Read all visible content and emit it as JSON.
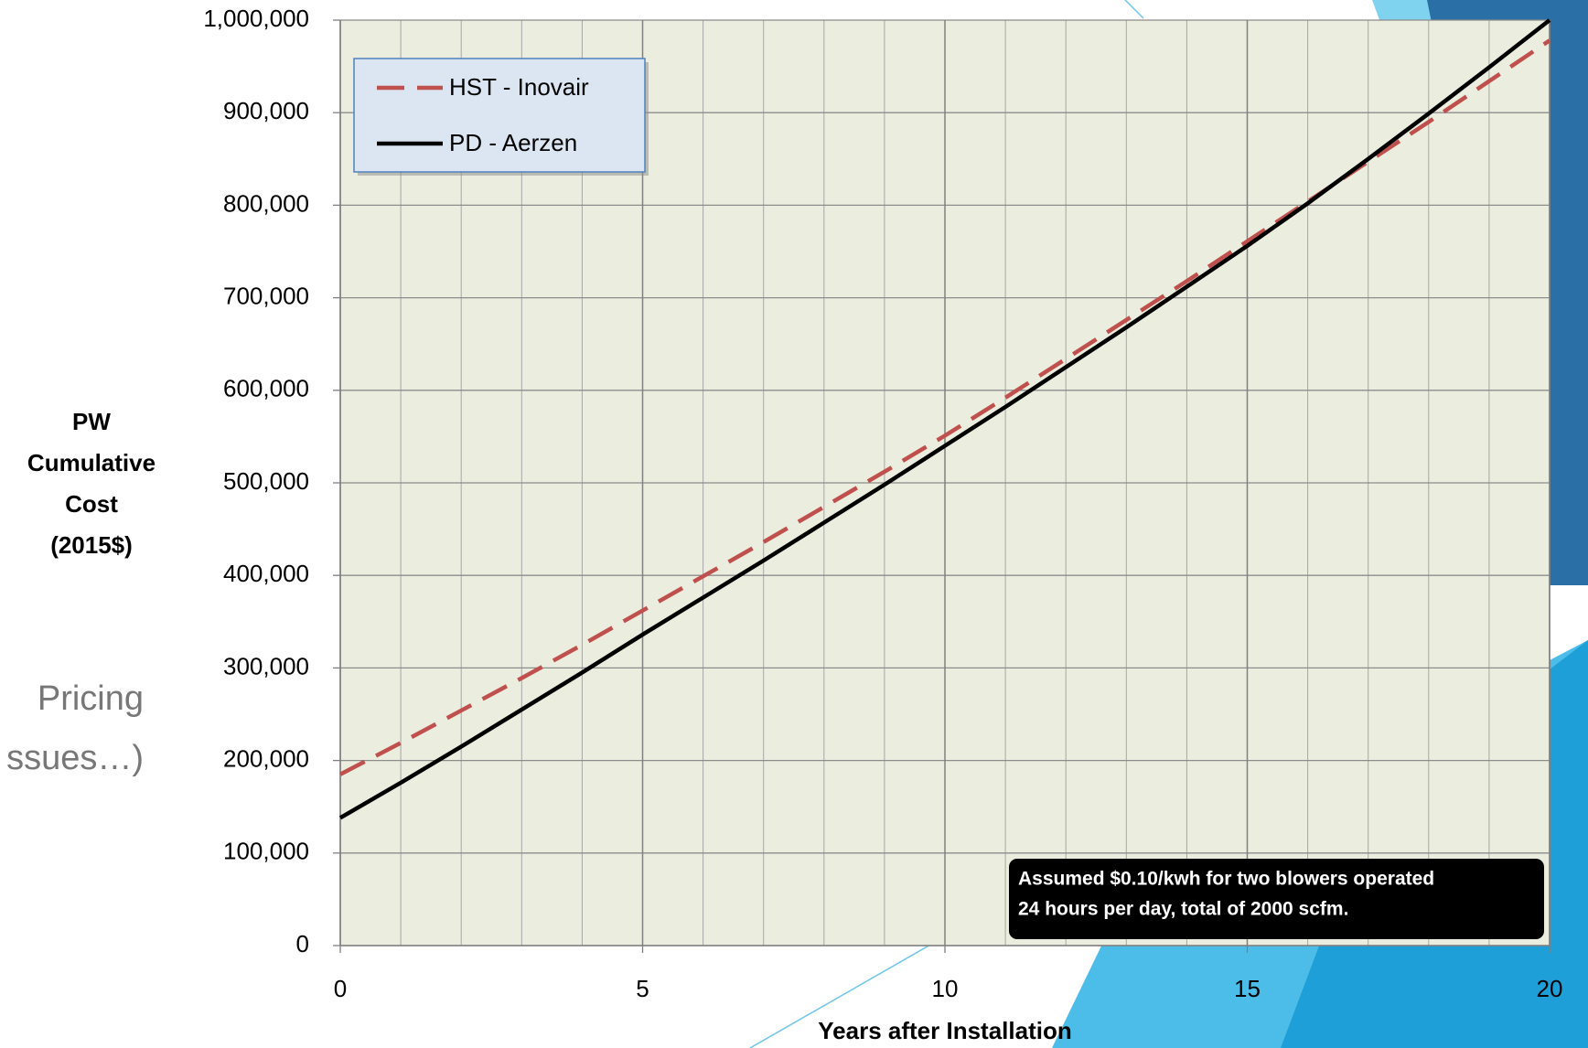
{
  "slide_text": [
    "Pricing",
    "ssues…)"
  ],
  "chart_data": {
    "type": "line",
    "ylabel_lines": [
      "PW",
      "Cumulative",
      "Cost",
      "(2015$)"
    ],
    "xlabel": "Years after Installation",
    "annotation_lines": [
      "Assumed $0.10/kwh for two blowers operated",
      "24 hours per day, total of 2000 scfm."
    ],
    "x": [
      0,
      1,
      2,
      3,
      4,
      5,
      6,
      7,
      8,
      9,
      10,
      11,
      12,
      13,
      14,
      15,
      16,
      17,
      18,
      19,
      20
    ],
    "series": [
      {
        "name": "HST - Inovair",
        "color": "#c0504d",
        "style": "dashed",
        "values": [
          185000,
          219000,
          254000,
          289000,
          325000,
          362000,
          399000,
          436000,
          474000,
          512000,
          551000,
          592000,
          634000,
          676000,
          718000,
          761000,
          804000,
          847000,
          890000,
          934000,
          978000
        ]
      },
      {
        "name": "PD - Aerzen",
        "color": "#000000",
        "style": "solid",
        "values": [
          138000,
          176000,
          215000,
          255000,
          295000,
          336000,
          376000,
          416000,
          457000,
          498000,
          540000,
          582000,
          625000,
          668000,
          712000,
          756000,
          802000,
          850000,
          899000,
          949000,
          1000000
        ]
      }
    ],
    "xlim": [
      0,
      20
    ],
    "xticks": [
      0,
      5,
      10,
      15,
      20
    ],
    "ylim": [
      0,
      1000000
    ],
    "yticks": [
      0,
      {
        "value": 100000,
        "label": "100,000"
      },
      {
        "value": 200000,
        "label": "200,000"
      },
      {
        "value": 300000,
        "label": "300,000"
      },
      {
        "value": 400000,
        "label": "400,000"
      },
      {
        "value": 500000,
        "label": "500,000"
      },
      {
        "value": 600000,
        "label": "600,000"
      },
      {
        "value": 700000,
        "label": "700,000"
      },
      {
        "value": 800000,
        "label": "800,000"
      },
      {
        "value": 900000,
        "label": "900,000"
      },
      {
        "value": 1000000,
        "label": "1,000,000"
      }
    ],
    "grid": true,
    "legend": "upper left"
  }
}
